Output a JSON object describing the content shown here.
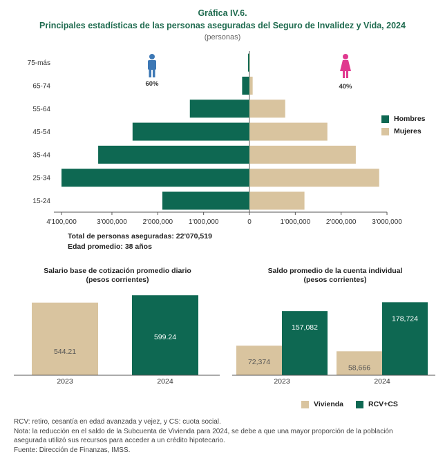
{
  "header": {
    "title": "Gráfica IV.6.",
    "subtitle": "Principales estadísticas de las personas aseguradas del Seguro de Invalidez y Vida, 2024",
    "unit": "(personas)"
  },
  "colors": {
    "hombres": "#0e6852",
    "mujeres": "#d9c49f",
    "title": "#1f6b4f",
    "male_icon": "#3d78b5",
    "female_icon": "#e0388f"
  },
  "chart_data": [
    {
      "type": "bar",
      "orientation": "horizontal-pyramid",
      "categories": [
        "75-más",
        "65-74",
        "55-64",
        "45-54",
        "35-44",
        "25-34",
        "15-24"
      ],
      "series": [
        {
          "name": "Hombres",
          "values": [
            30000,
            160000,
            1300000,
            2550000,
            3300000,
            4100000,
            1900000
          ]
        },
        {
          "name": "Mujeres",
          "values": [
            10000,
            70000,
            780000,
            1700000,
            2320000,
            2830000,
            1200000
          ]
        }
      ],
      "x_tick_labels": [
        "4'100,000",
        "3'000,000",
        "2'000,000",
        "1'000,000",
        "0",
        "1'000,000",
        "2'000,000",
        "3'000,000"
      ],
      "xlim": [
        -4100000,
        3000000
      ],
      "annotations": {
        "hombres_pct": "60%",
        "mujeres_pct": "40%"
      },
      "legend": "right"
    },
    {
      "type": "bar",
      "title": "Salario base de cotización promedio diario",
      "subtitle": "(pesos corrientes)",
      "categories": [
        "2023",
        "2024"
      ],
      "values": [
        544.21,
        599.24
      ],
      "value_labels": [
        "544.21",
        "599.24"
      ],
      "ylim": [
        0,
        620
      ]
    },
    {
      "type": "bar",
      "title": "Saldo promedio de la cuenta individual",
      "subtitle": "(pesos corrientes)",
      "categories": [
        "2023",
        "2024"
      ],
      "series": [
        {
          "name": "Vivienda",
          "values": [
            72374,
            58666
          ],
          "labels": [
            "72,374",
            "58,666"
          ]
        },
        {
          "name": "RCV+CS",
          "values": [
            157082,
            178724
          ],
          "labels": [
            "157,082",
            "178,724"
          ]
        }
      ],
      "ylim": [
        0,
        190000
      ],
      "legend": "bottom"
    }
  ],
  "summary": {
    "total": "Total de personas aseguradas: 22'070,519",
    "edad": "Edad promedio: 38 años"
  },
  "legends": {
    "hombres": "Hombres",
    "mujeres": "Mujeres",
    "vivienda": "Vivienda",
    "rcv": "RCV+CS"
  },
  "notes": [
    "RCV: retiro, cesantía en edad avanzada y vejez, y CS: cuota social.",
    "Nota: la reducción en el saldo de la Subcuenta de Vivienda para 2024, se debe a que una mayor proporción de la población",
    "asegurada utilizó sus recursos para acceder a un crédito hipotecario.",
    "Fuente: Dirección de Finanzas, IMSS."
  ]
}
